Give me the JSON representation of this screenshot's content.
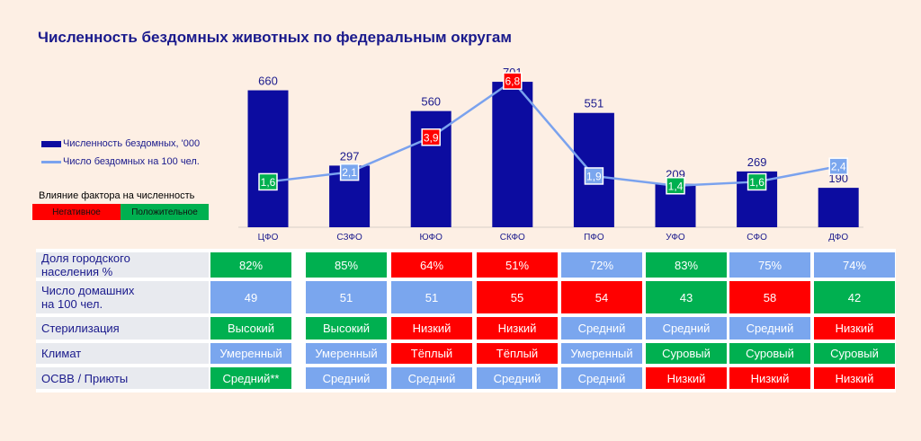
{
  "title": "Численность бездомных животных по федеральным округам",
  "chart_data": {
    "type": "bar",
    "categories": [
      "ЦФО",
      "СЗФО",
      "ЮФО",
      "СКФО",
      "ПФО",
      "УФО",
      "СФО",
      "ДФО"
    ],
    "series": [
      {
        "name": "Численность бездомных, '000",
        "type": "bar",
        "values": [
          660,
          297,
          560,
          701,
          551,
          209,
          269,
          190
        ],
        "labels": [
          "660",
          "297",
          "560",
          "701",
          "551",
          "209",
          "269",
          "190"
        ]
      },
      {
        "name": "Число бездомных на 100 чел.",
        "type": "line",
        "values": [
          1.6,
          2.1,
          3.9,
          6.8,
          1.9,
          1.4,
          1.6,
          2.4
        ],
        "labels": [
          "1,6",
          "2,1",
          "3,9",
          "6,8",
          "1,9",
          "1,4",
          "1,6",
          "2,4"
        ],
        "label_colors": [
          "green",
          "blue",
          "red",
          "red",
          "blue",
          "green",
          "green",
          "blue"
        ]
      }
    ]
  },
  "legend": {
    "bars": "Численность бездомных, '000",
    "line": "Число бездомных на 100 чел."
  },
  "factor": {
    "title": "Влияние фактора на численность",
    "negative": "Негативное",
    "positive": "Положительное"
  },
  "colors": {
    "bar": "#0c0ca0",
    "line": "#7aa2ee",
    "green": "#00b050",
    "red": "#ff0000",
    "blue": "#7aa6ee"
  },
  "table": {
    "rows": [
      {
        "label": "Доля городского\nнаселения %",
        "cells": [
          {
            "v": "82%",
            "c": "green"
          },
          {
            "v": "85%",
            "c": "green"
          },
          {
            "v": "64%",
            "c": "red"
          },
          {
            "v": "51%",
            "c": "red"
          },
          {
            "v": "72%",
            "c": "blue"
          },
          {
            "v": "83%",
            "c": "green"
          },
          {
            "v": "75%",
            "c": "blue"
          },
          {
            "v": "74%",
            "c": "blue"
          }
        ]
      },
      {
        "label": "Число домашних\nна 100 чел.",
        "cells": [
          {
            "v": "49",
            "c": "blue"
          },
          {
            "v": "51",
            "c": "blue"
          },
          {
            "v": "51",
            "c": "blue"
          },
          {
            "v": "55",
            "c": "red"
          },
          {
            "v": "54",
            "c": "red"
          },
          {
            "v": "43",
            "c": "green"
          },
          {
            "v": "58",
            "c": "red"
          },
          {
            "v": "42",
            "c": "green"
          }
        ]
      },
      {
        "label": "Стерилизация",
        "cells": [
          {
            "v": "Высокий",
            "c": "green"
          },
          {
            "v": "Высокий",
            "c": "green"
          },
          {
            "v": "Низкий",
            "c": "red"
          },
          {
            "v": "Низкий",
            "c": "red"
          },
          {
            "v": "Средний",
            "c": "blue"
          },
          {
            "v": "Средний",
            "c": "blue"
          },
          {
            "v": "Средний",
            "c": "blue"
          },
          {
            "v": "Низкий",
            "c": "red"
          }
        ]
      },
      {
        "label": "Климат",
        "cells": [
          {
            "v": "Умеренный",
            "c": "blue"
          },
          {
            "v": "Умеренный",
            "c": "blue"
          },
          {
            "v": "Тёплый",
            "c": "red"
          },
          {
            "v": "Тёплый",
            "c": "red"
          },
          {
            "v": "Умеренный",
            "c": "blue"
          },
          {
            "v": "Суровый",
            "c": "green"
          },
          {
            "v": "Суровый",
            "c": "green"
          },
          {
            "v": "Суровый",
            "c": "green"
          }
        ]
      },
      {
        "label": "ОСВВ / Приюты",
        "cells": [
          {
            "v": "Средний**",
            "c": "green"
          },
          {
            "v": "Средний",
            "c": "blue"
          },
          {
            "v": "Средний",
            "c": "blue"
          },
          {
            "v": "Средний",
            "c": "blue"
          },
          {
            "v": "Средний",
            "c": "blue"
          },
          {
            "v": "Низкий",
            "c": "red"
          },
          {
            "v": "Низкий",
            "c": "red"
          },
          {
            "v": "Низкий",
            "c": "red"
          }
        ]
      }
    ]
  }
}
